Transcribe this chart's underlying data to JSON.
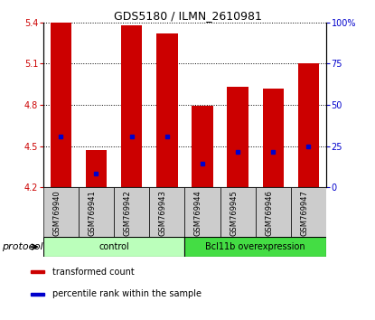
{
  "title": "GDS5180 / ILMN_2610981",
  "samples": [
    "GSM769940",
    "GSM769941",
    "GSM769942",
    "GSM769943",
    "GSM769944",
    "GSM769945",
    "GSM769946",
    "GSM769947"
  ],
  "bar_tops": [
    5.4,
    4.47,
    5.38,
    5.32,
    4.79,
    4.93,
    4.92,
    5.1
  ],
  "bar_bottoms": [
    4.2,
    4.2,
    4.2,
    4.2,
    4.2,
    4.2,
    4.2,
    4.2
  ],
  "blue_dot_y": [
    4.57,
    4.3,
    4.57,
    4.57,
    4.37,
    4.46,
    4.46,
    4.5
  ],
  "ylim": [
    4.2,
    5.4
  ],
  "yticks_left": [
    4.2,
    4.5,
    4.8,
    5.1,
    5.4
  ],
  "yticks_right": [
    0,
    25,
    50,
    75,
    100
  ],
  "bar_color": "#cc0000",
  "dot_color": "#0000cc",
  "grid_color": "#000000",
  "protocol_groups": [
    {
      "label": "control",
      "start": 0,
      "end": 4,
      "color": "#bbffbb"
    },
    {
      "label": "Bcl11b overexpression",
      "start": 4,
      "end": 8,
      "color": "#44dd44"
    }
  ],
  "protocol_label": "protocol",
  "legend_items": [
    {
      "color": "#cc0000",
      "label": "transformed count"
    },
    {
      "color": "#0000cc",
      "label": "percentile rank within the sample"
    }
  ],
  "bar_color_left": "#cc0000",
  "bar_color_right": "#0000cc",
  "bar_width": 0.6,
  "label_bg": "#cccccc",
  "title_fontsize": 9,
  "tick_fontsize": 7,
  "sample_fontsize": 6,
  "proto_fontsize": 7,
  "legend_fontsize": 7
}
